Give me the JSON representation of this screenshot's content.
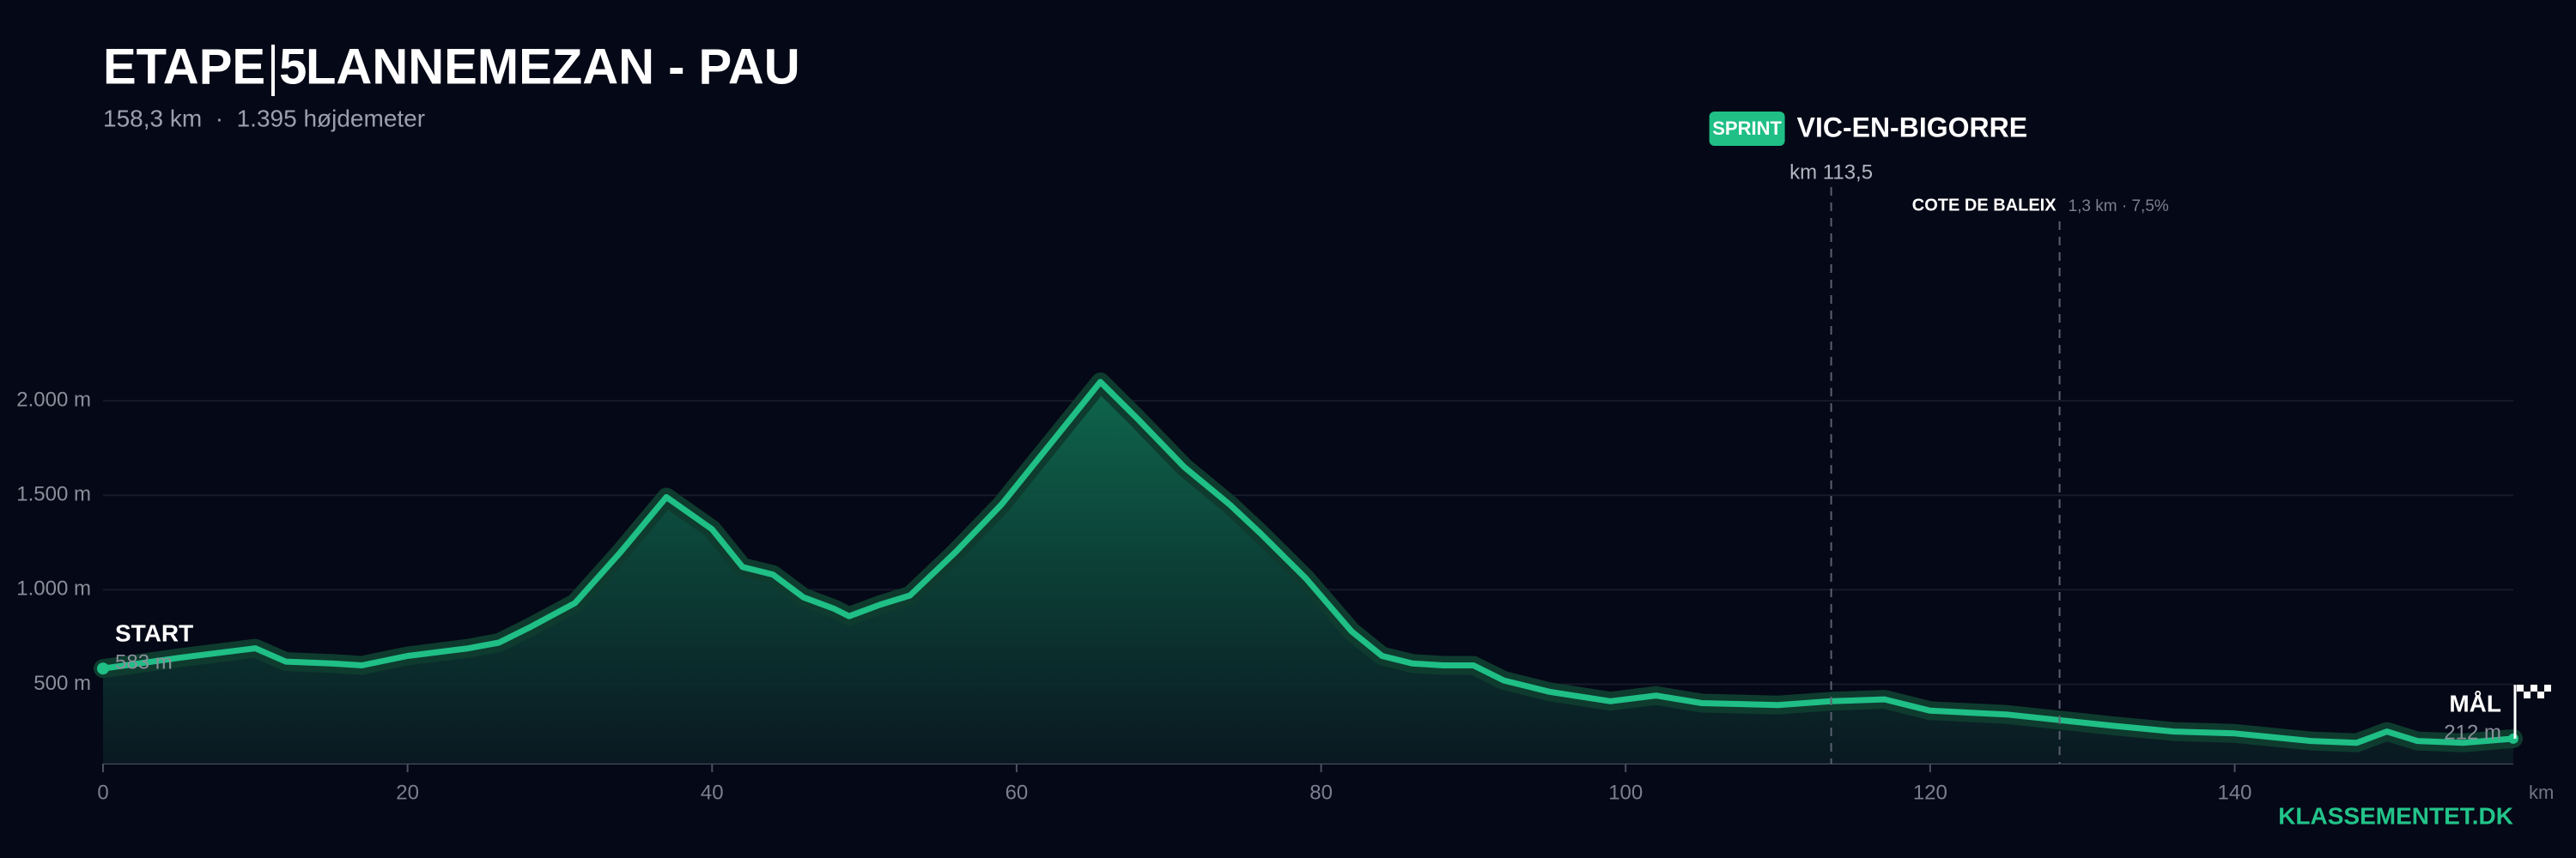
{
  "chart_data": {
    "type": "area",
    "title": "ETAPE 5",
    "route": "LANNEMEZAN - PAU",
    "subtitle": "158,3 km  ·  1.395 højdemeter",
    "x_unit": "km",
    "brand": "KLASSEMENTET.DK",
    "color": "#1fbf86",
    "x": [
      0,
      5,
      9,
      10,
      12,
      15,
      17,
      20,
      24,
      26,
      28,
      31,
      34,
      37,
      40,
      42,
      44,
      46,
      48,
      49,
      51,
      53,
      56,
      59,
      62,
      65.5,
      68,
      71,
      74,
      76,
      79,
      82,
      84,
      86,
      88,
      90,
      92,
      95,
      99,
      102,
      105,
      110,
      113.5,
      117,
      120,
      125,
      128.5,
      132,
      136,
      140,
      145,
      148,
      150,
      152,
      155,
      158.3
    ],
    "values": [
      583,
      640,
      680,
      690,
      620,
      610,
      600,
      650,
      690,
      720,
      800,
      930,
      1200,
      1490,
      1320,
      1120,
      1080,
      960,
      900,
      860,
      920,
      970,
      1200,
      1450,
      1750,
      2100,
      1900,
      1650,
      1450,
      1300,
      1060,
      780,
      650,
      610,
      600,
      600,
      520,
      460,
      410,
      440,
      400,
      390,
      410,
      420,
      360,
      340,
      310,
      280,
      250,
      240,
      200,
      190,
      250,
      200,
      190,
      212
    ],
    "xlim": [
      0,
      158.3
    ],
    "xticks": [
      0,
      20,
      40,
      60,
      80,
      100,
      120,
      140
    ],
    "ylim": [
      80,
      2400
    ],
    "yticks": [
      {
        "value": 500,
        "label": "500 m"
      },
      {
        "value": 1000,
        "label": "1.000 m"
      },
      {
        "value": 1500,
        "label": "1.500 m"
      },
      {
        "value": 2000,
        "label": "2.000 m"
      }
    ],
    "grid": true,
    "start": {
      "text": "START",
      "value": 583,
      "value_label": "583 m"
    },
    "finish": {
      "text": "MÅL",
      "value": 212,
      "value_label": "212 m"
    },
    "sprint": {
      "badge": "SPRINT",
      "text": "VIC-EN-BIGORRE",
      "x": 113.5,
      "x_label": "km 113,5"
    },
    "climb": {
      "text": "COTE DE BALEIX",
      "detail": "1,3 km · 7,5%",
      "x": 128.5
    }
  }
}
